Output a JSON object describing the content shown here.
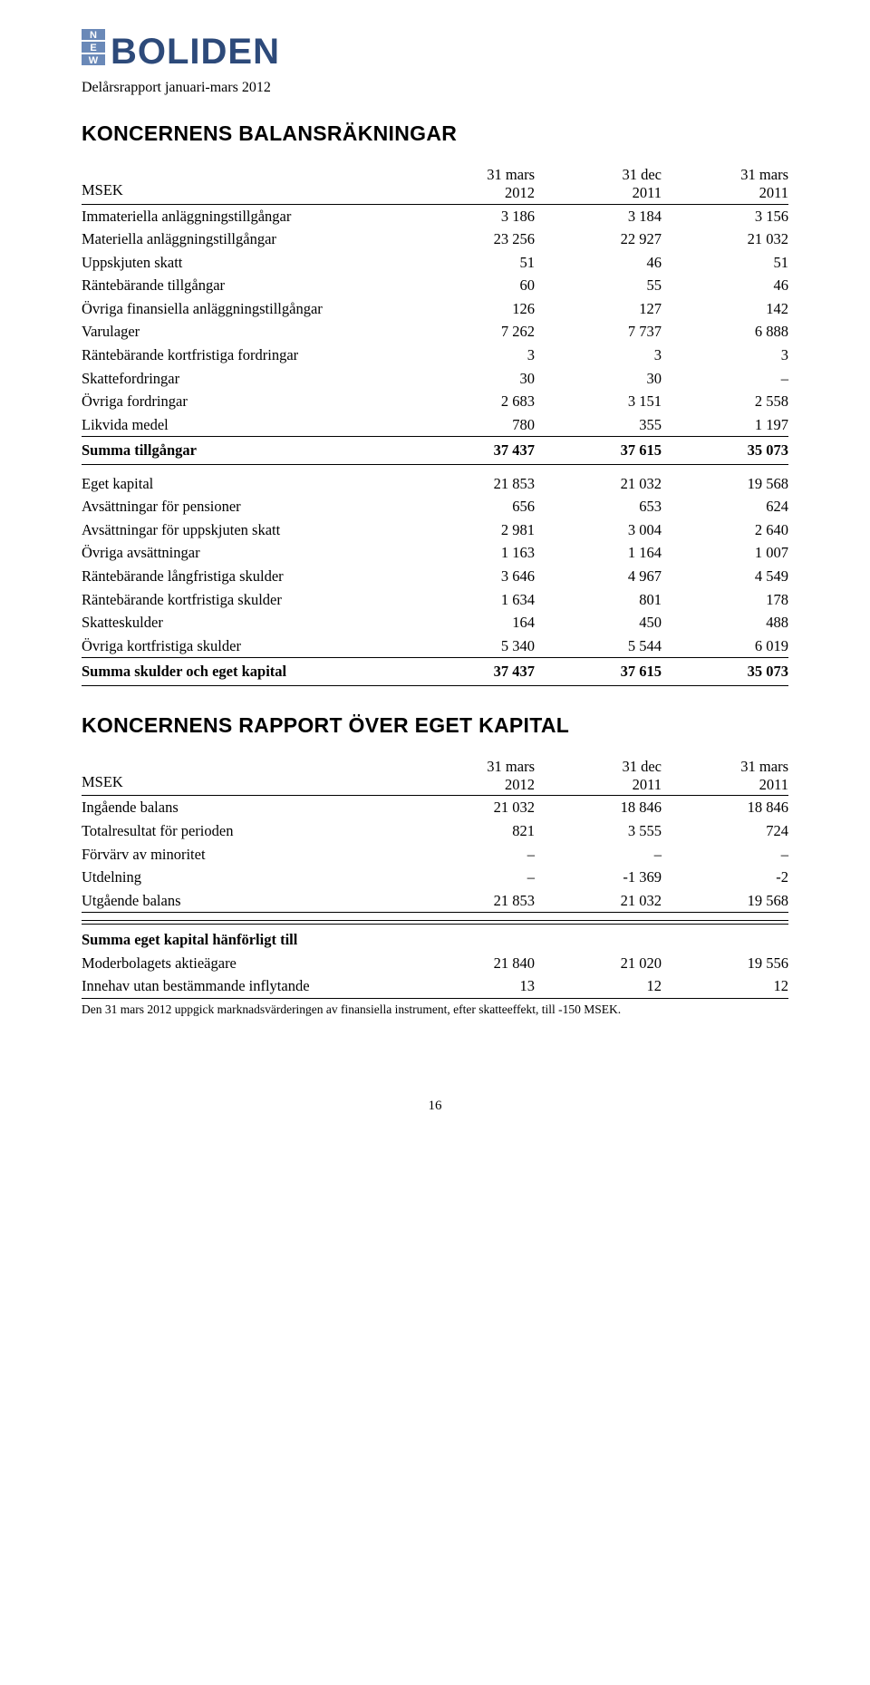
{
  "logo": {
    "brand_color": "#2d4a7a",
    "text": "BOLIDEN",
    "new_color": "#6a89b8"
  },
  "subtitle": "Delårsrapport januari-mars 2012",
  "section1_title": "KONCERNENS BALANSRÄKNINGAR",
  "section2_title": "KONCERNENS RAPPORT ÖVER EGET KAPITAL",
  "col_header_label": "MSEK",
  "columns": [
    {
      "top": "31 mars",
      "bot": "2012"
    },
    {
      "top": "31 dec",
      "bot": "2011"
    },
    {
      "top": "31 mars",
      "bot": "2011"
    }
  ],
  "balance": {
    "assets": [
      {
        "label": "Immateriella anläggningstillgångar",
        "v": [
          "3 186",
          "3 184",
          "3 156"
        ]
      },
      {
        "label": "Materiella anläggningstillgångar",
        "v": [
          "23 256",
          "22 927",
          "21 032"
        ]
      },
      {
        "label": "Uppskjuten skatt",
        "v": [
          "51",
          "46",
          "51"
        ]
      },
      {
        "label": "Räntebärande tillgångar",
        "v": [
          "60",
          "55",
          "46"
        ]
      },
      {
        "label": "Övriga finansiella anläggningstillgångar",
        "v": [
          "126",
          "127",
          "142"
        ]
      },
      {
        "label": "Varulager",
        "v": [
          "7 262",
          "7 737",
          "6 888"
        ]
      },
      {
        "label": "Räntebärande kortfristiga fordringar",
        "v": [
          "3",
          "3",
          "3"
        ]
      },
      {
        "label": "Skattefordringar",
        "v": [
          "30",
          "30",
          "–"
        ]
      },
      {
        "label": "Övriga fordringar",
        "v": [
          "2 683",
          "3 151",
          "2 558"
        ]
      },
      {
        "label": "Likvida medel",
        "v": [
          "780",
          "355",
          "1 197"
        ]
      }
    ],
    "sum_assets": {
      "label": "Summa tillgångar",
      "v": [
        "37 437",
        "37 615",
        "35 073"
      ]
    },
    "liabilities": [
      {
        "label": "Eget kapital",
        "v": [
          "21 853",
          "21 032",
          "19 568"
        ]
      },
      {
        "label": "Avsättningar för pensioner",
        "v": [
          "656",
          "653",
          "624"
        ]
      },
      {
        "label": "Avsättningar för uppskjuten skatt",
        "v": [
          "2 981",
          "3 004",
          "2 640"
        ]
      },
      {
        "label": "Övriga avsättningar",
        "v": [
          "1 163",
          "1 164",
          "1 007"
        ]
      },
      {
        "label": "Räntebärande långfristiga skulder",
        "v": [
          "3 646",
          "4 967",
          "4 549"
        ]
      },
      {
        "label": "Räntebärande kortfristiga skulder",
        "v": [
          "1 634",
          "801",
          "178"
        ]
      },
      {
        "label": "Skatteskulder",
        "v": [
          "164",
          "450",
          "488"
        ]
      },
      {
        "label": "Övriga kortfristiga skulder",
        "v": [
          "5 340",
          "5 544",
          "6 019"
        ]
      }
    ],
    "sum_liab": {
      "label": "Summa skulder och eget kapital",
      "v": [
        "37 437",
        "37 615",
        "35 073"
      ]
    }
  },
  "equity": {
    "rows": [
      {
        "label": "Ingående balans",
        "v": [
          "21 032",
          "18 846",
          "18 846"
        ]
      },
      {
        "label": "Totalresultat för perioden",
        "v": [
          "821",
          "3 555",
          "724"
        ]
      },
      {
        "label": "Förvärv av minoritet",
        "v": [
          "–",
          "–",
          "–"
        ]
      },
      {
        "label": "Utdelning",
        "v": [
          "–",
          "-1 369",
          "-2"
        ]
      },
      {
        "label": "Utgående balans",
        "v": [
          "21 853",
          "21 032",
          "19 568"
        ],
        "underline": true
      }
    ],
    "attrib_header": "Summa eget kapital hänförligt till",
    "attrib_rows": [
      {
        "label": "Moderbolagets aktieägare",
        "v": [
          "21 840",
          "21 020",
          "19 556"
        ]
      },
      {
        "label": "Innehav utan bestämmande inflytande",
        "v": [
          "13",
          "12",
          "12"
        ],
        "underline": true
      }
    ]
  },
  "footnote": "Den 31 mars 2012 uppgick marknadsvärderingen av finansiella instrument, efter skatteeffekt, till -150 MSEK.",
  "page_number": "16"
}
